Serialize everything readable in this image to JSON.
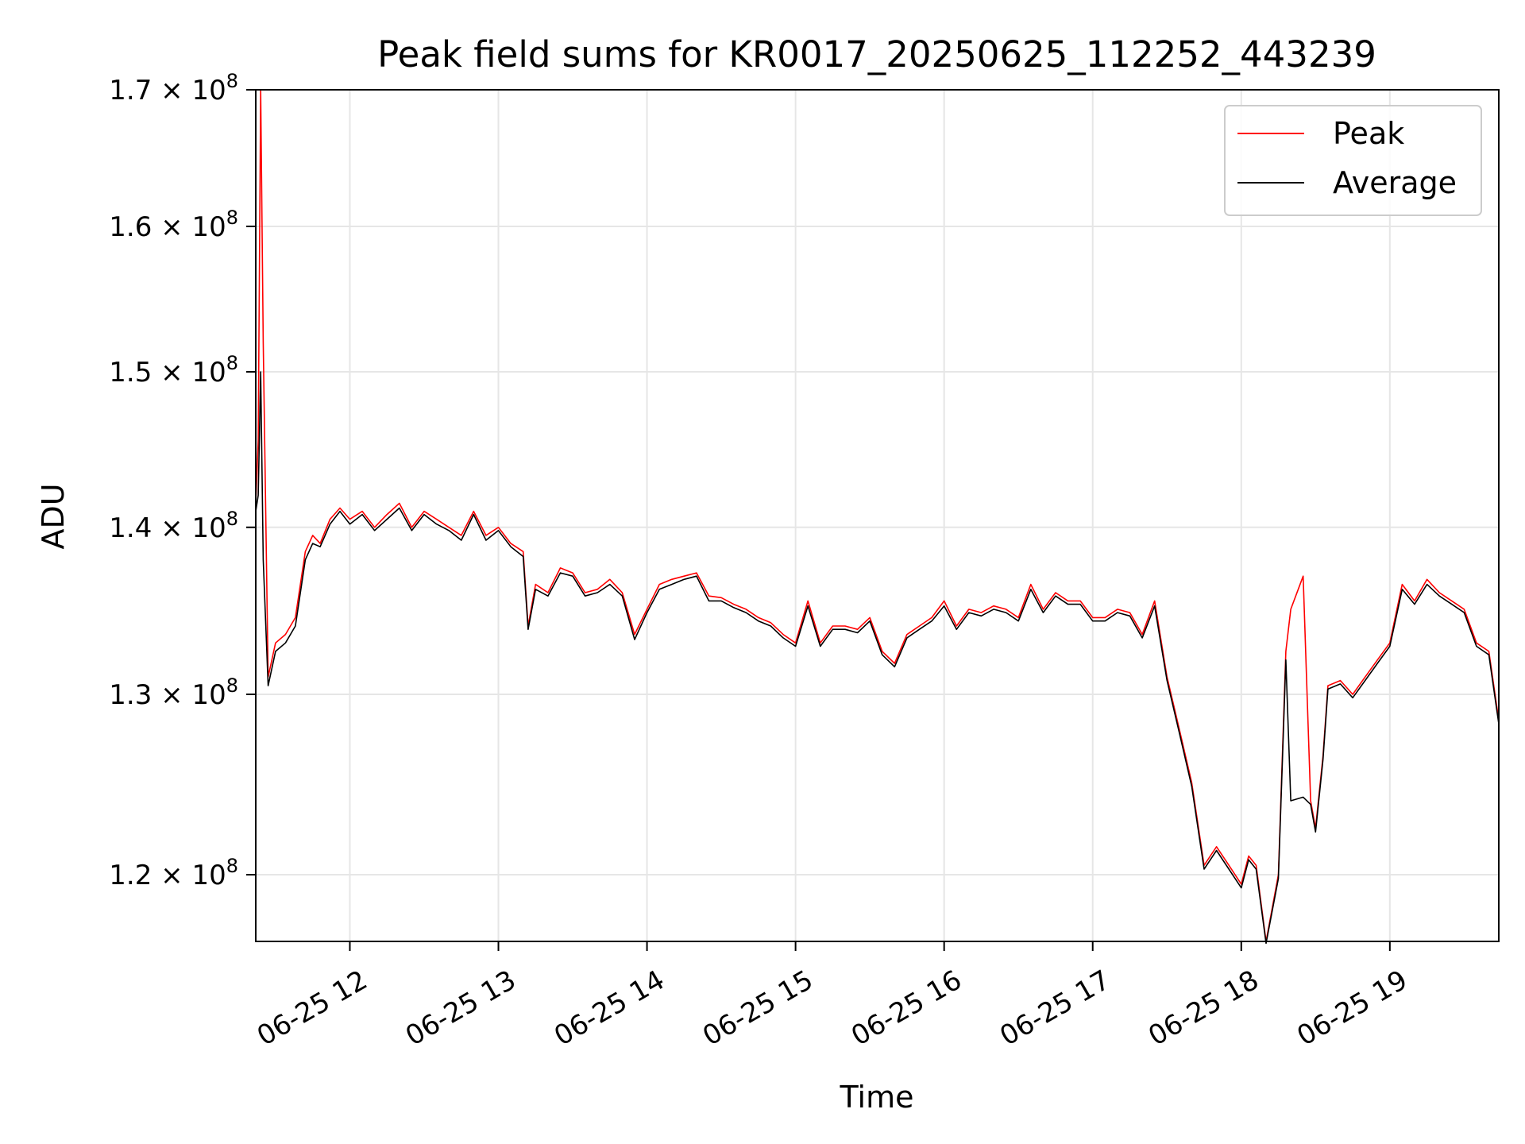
{
  "chart_data": {
    "type": "line",
    "title": "Peak field sums for KR0017_20250625_112252_443239",
    "xlabel": "Time",
    "ylabel": "ADU",
    "yscale": "log",
    "ylim": [
      116500000,
      170000000
    ],
    "xlim": [
      "2025-06-25T11:22",
      "2025-06-25T19:44"
    ],
    "grid": true,
    "legend_position": "upper right",
    "x_ticks": [
      {
        "x": "2025-06-25T12:00",
        "label": "06-25 12"
      },
      {
        "x": "2025-06-25T13:00",
        "label": "06-25 13"
      },
      {
        "x": "2025-06-25T14:00",
        "label": "06-25 14"
      },
      {
        "x": "2025-06-25T15:00",
        "label": "06-25 15"
      },
      {
        "x": "2025-06-25T16:00",
        "label": "06-25 16"
      },
      {
        "x": "2025-06-25T17:00",
        "label": "06-25 17"
      },
      {
        "x": "2025-06-25T18:00",
        "label": "06-25 18"
      },
      {
        "x": "2025-06-25T19:00",
        "label": "06-25 19"
      }
    ],
    "y_ticks": [
      {
        "value": 120000000,
        "mantissa": "1.2",
        "base": "10",
        "exponent": "8"
      },
      {
        "value": 130000000,
        "mantissa": "1.3",
        "base": "10",
        "exponent": "8"
      },
      {
        "value": 140000000,
        "mantissa": "1.4",
        "base": "10",
        "exponent": "8"
      },
      {
        "value": 150000000,
        "mantissa": "1.5",
        "base": "10",
        "exponent": "8"
      },
      {
        "value": 160000000,
        "mantissa": "1.6",
        "base": "10",
        "exponent": "8"
      },
      {
        "value": 170000000,
        "mantissa": "1.7",
        "base": "10",
        "exponent": "8"
      }
    ],
    "x": [
      "11:22",
      "11:23",
      "11:24",
      "11:25",
      "11:27",
      "11:30",
      "11:34",
      "11:38",
      "11:42",
      "11:45",
      "11:48",
      "11:52",
      "11:56",
      "12:00",
      "12:05",
      "12:10",
      "12:15",
      "12:20",
      "12:25",
      "12:30",
      "12:35",
      "12:40",
      "12:45",
      "12:50",
      "12:55",
      "13:00",
      "13:05",
      "13:10",
      "13:12",
      "13:15",
      "13:20",
      "13:25",
      "13:30",
      "13:35",
      "13:40",
      "13:45",
      "13:50",
      "13:55",
      "14:00",
      "14:05",
      "14:10",
      "14:15",
      "14:20",
      "14:25",
      "14:30",
      "14:35",
      "14:40",
      "14:45",
      "14:50",
      "14:55",
      "15:00",
      "15:05",
      "15:10",
      "15:15",
      "15:20",
      "15:25",
      "15:30",
      "15:35",
      "15:40",
      "15:45",
      "15:50",
      "15:55",
      "16:00",
      "16:05",
      "16:10",
      "16:15",
      "16:20",
      "16:25",
      "16:30",
      "16:35",
      "16:40",
      "16:45",
      "16:50",
      "16:55",
      "17:00",
      "17:05",
      "17:10",
      "17:15",
      "17:20",
      "17:25",
      "17:30",
      "17:35",
      "17:40",
      "17:45",
      "17:50",
      "17:55",
      "18:00",
      "18:03",
      "18:06",
      "18:10",
      "18:15",
      "18:18",
      "18:20",
      "18:25",
      "18:28",
      "18:30",
      "18:33",
      "18:35",
      "18:40",
      "18:45",
      "18:50",
      "18:55",
      "19:00",
      "19:05",
      "19:10",
      "19:15",
      "19:20",
      "19:25",
      "19:30",
      "19:35",
      "19:40",
      "19:44"
    ],
    "series": [
      {
        "name": "Peak",
        "color": "#ff0000",
        "values": [
          141500000,
          145500000,
          170000000,
          152000000,
          131000000,
          133000000,
          133500000,
          134500000,
          138500000,
          139500000,
          139000000,
          140500000,
          141200000,
          140500000,
          141000000,
          140000000,
          140800000,
          141500000,
          140000000,
          141000000,
          140500000,
          140000000,
          139500000,
          141000000,
          139500000,
          140000000,
          139000000,
          138500000,
          134000000,
          136500000,
          136000000,
          137500000,
          137200000,
          136000000,
          136200000,
          136800000,
          136000000,
          133500000,
          135000000,
          136500000,
          136800000,
          137000000,
          137200000,
          135800000,
          135700000,
          135300000,
          135000000,
          134500000,
          134200000,
          133500000,
          133000000,
          135500000,
          133000000,
          134000000,
          134000000,
          133800000,
          134500000,
          132500000,
          131800000,
          133500000,
          134000000,
          134500000,
          135500000,
          134000000,
          135000000,
          134800000,
          135200000,
          135000000,
          134500000,
          136500000,
          135000000,
          136000000,
          135500000,
          135500000,
          134500000,
          134500000,
          135000000,
          134800000,
          133500000,
          135500000,
          131000000,
          128000000,
          125000000,
          120500000,
          121500000,
          120500000,
          119500000,
          121000000,
          120500000,
          116500000,
          120000000,
          132500000,
          135000000,
          137000000,
          124000000,
          122500000,
          126500000,
          130500000,
          130800000,
          130000000,
          131000000,
          132000000,
          133000000,
          136500000,
          135500000,
          136800000,
          136000000,
          135500000,
          135000000,
          133000000,
          132500000,
          128500000
        ]
      },
      {
        "name": "Average",
        "color": "#000000",
        "values": [
          141000000,
          142000000,
          150000000,
          138000000,
          130500000,
          132500000,
          133000000,
          134000000,
          138000000,
          139000000,
          138800000,
          140200000,
          141000000,
          140200000,
          140800000,
          139800000,
          140500000,
          141200000,
          139800000,
          140800000,
          140200000,
          139800000,
          139200000,
          140800000,
          139200000,
          139800000,
          138800000,
          138200000,
          133800000,
          136200000,
          135800000,
          137200000,
          137000000,
          135800000,
          136000000,
          136500000,
          135800000,
          133200000,
          134800000,
          136200000,
          136500000,
          136800000,
          137000000,
          135500000,
          135500000,
          135100000,
          134800000,
          134300000,
          134000000,
          133300000,
          132800000,
          135200000,
          132800000,
          133800000,
          133800000,
          133600000,
          134300000,
          132300000,
          131600000,
          133300000,
          133800000,
          134300000,
          135200000,
          133800000,
          134800000,
          134600000,
          135000000,
          134800000,
          134300000,
          136200000,
          134800000,
          135800000,
          135300000,
          135300000,
          134300000,
          134300000,
          134800000,
          134600000,
          133300000,
          135200000,
          130800000,
          127800000,
          124800000,
          120300000,
          121300000,
          120300000,
          119300000,
          120800000,
          120300000,
          116400000,
          119800000,
          132000000,
          124000000,
          124200000,
          123800000,
          122300000,
          126300000,
          130300000,
          130600000,
          129800000,
          130800000,
          131800000,
          132800000,
          136200000,
          135300000,
          136500000,
          135800000,
          135300000,
          134800000,
          132800000,
          132300000,
          128300000
        ]
      }
    ]
  }
}
